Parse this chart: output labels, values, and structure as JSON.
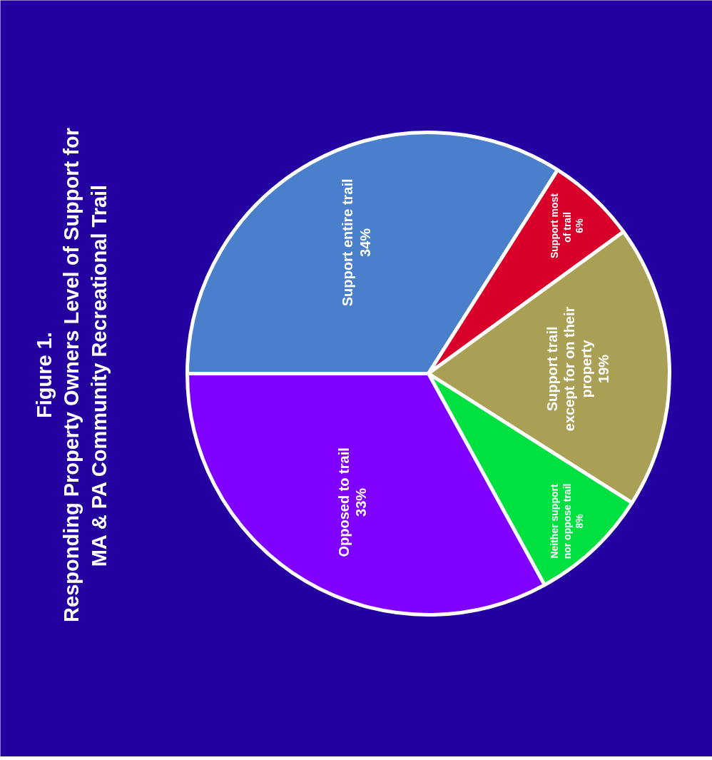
{
  "chart_data": {
    "type": "pie",
    "title": "Figure 1.\nResponding Property Owners Level of Support for\nMA & PA Community Recreational Trail",
    "categories": [
      "Support entire trail",
      "Support most\nof  trail",
      "Support trail\nexcept for on their\nproperty",
      "Neither support\nnor oppose trail",
      "Opposed to trail"
    ],
    "values": [
      34,
      6,
      19,
      8,
      33
    ],
    "colors": [
      "#4a7fcc",
      "#d8002a",
      "#a9a055",
      "#00e040",
      "#8000ff"
    ],
    "value_labels": [
      "34%",
      "6%",
      "19%",
      "8%",
      "33%"
    ]
  }
}
